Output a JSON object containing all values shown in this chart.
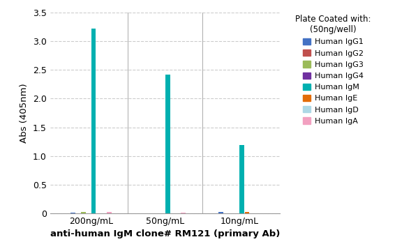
{
  "groups": [
    "200ng/mL",
    "50ng/mL",
    "10ng/mL"
  ],
  "series": [
    {
      "label": "Human IgG1",
      "color": "#4472C4",
      "values": [
        0.01,
        0.005,
        0.02
      ]
    },
    {
      "label": "Human IgG2",
      "color": "#C0504D",
      "values": [
        0.005,
        0.003,
        0.003
      ]
    },
    {
      "label": "Human IgG3",
      "color": "#9BBB59",
      "values": [
        0.02,
        0.005,
        0.003
      ]
    },
    {
      "label": "Human IgG4",
      "color": "#7030A0",
      "values": [
        0.005,
        0.003,
        0.003
      ]
    },
    {
      "label": "Human IgM",
      "color": "#00B0B0",
      "values": [
        3.22,
        2.42,
        1.19
      ]
    },
    {
      "label": "Human IgE",
      "color": "#E36C09",
      "values": [
        0.005,
        0.003,
        0.03
      ]
    },
    {
      "label": "Human IgD",
      "color": "#ADD8E6",
      "values": [
        0.005,
        0.003,
        0.003
      ]
    },
    {
      "label": "Human IgA",
      "color": "#F2A0C0",
      "values": [
        0.025,
        0.008,
        0.003
      ]
    }
  ],
  "xlabel": "anti-human IgM clone# RM121 (primary Ab)",
  "ylabel": "Abs (405nm)",
  "ylim": [
    0,
    3.5
  ],
  "yticks": [
    0,
    0.5,
    1.0,
    1.5,
    2.0,
    2.5,
    3.0,
    3.5
  ],
  "legend_title_line1": "Plate Coated with:",
  "legend_title_line2": "(50ng/well)",
  "background_color": "#FFFFFF",
  "grid_color": "#CCCCCC"
}
